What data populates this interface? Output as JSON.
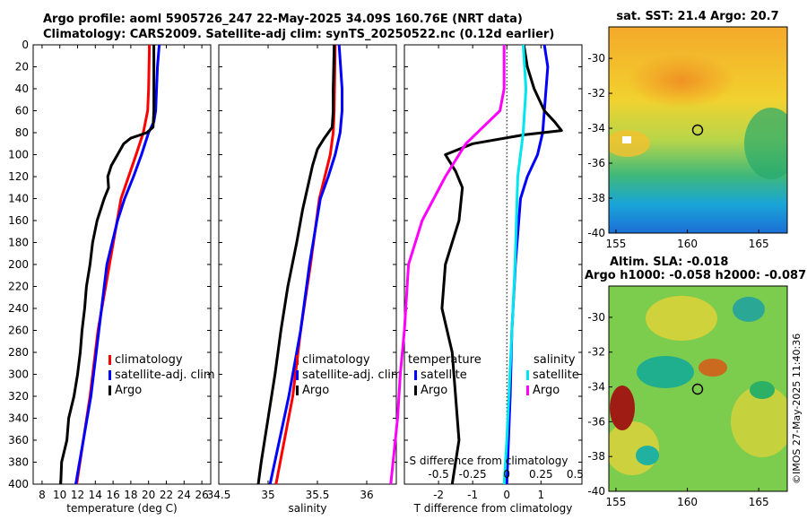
{
  "header": {
    "line1": "Argo profile: aoml 5905726_247 22-May-2025 34.09S 160.76E (NRT data)",
    "line2": "Climatology: CARS2009. Satellite-adj clim: synTS_20250522.nc (0.12d earlier)"
  },
  "colors": {
    "climatology": "#ff0000",
    "satellite": "#0000ff",
    "argo": "#000000",
    "sat_salinity": "#00e5ee",
    "argo_salinity": "#ff00ff"
  },
  "chart_data": [
    {
      "type": "line",
      "name": "temperature",
      "xlabel": "temperature (deg C)",
      "ylabel": "depth",
      "xlim": [
        7,
        27
      ],
      "ylim": [
        400,
        0
      ],
      "xticks": [
        8,
        10,
        12,
        14,
        16,
        18,
        20,
        22,
        24,
        26
      ],
      "yticks": [
        0,
        20,
        40,
        60,
        80,
        100,
        120,
        140,
        160,
        180,
        200,
        220,
        240,
        260,
        280,
        300,
        320,
        340,
        360,
        380,
        400
      ],
      "legend": [
        "climatology",
        "satellite-adj. clim",
        "Argo"
      ],
      "series": [
        {
          "name": "climatology",
          "color": "#ff0000",
          "depth": [
            0,
            40,
            60,
            80,
            100,
            140,
            200,
            260,
            320,
            400
          ],
          "values": [
            20.1,
            20.0,
            19.9,
            19.4,
            18.6,
            16.9,
            15.6,
            14.3,
            13.4,
            11.9
          ]
        },
        {
          "name": "satellite-adj. clim",
          "color": "#0000ff",
          "depth": [
            0,
            20,
            40,
            60,
            70,
            80,
            100,
            120,
            140,
            160,
            200,
            260,
            320,
            400
          ],
          "values": [
            21.2,
            21.0,
            20.9,
            20.8,
            20.6,
            20.0,
            19.2,
            18.3,
            17.3,
            16.5,
            15.3,
            14.4,
            13.5,
            11.8
          ]
        },
        {
          "name": "Argo",
          "color": "#000000",
          "depth": [
            0,
            20,
            40,
            60,
            75,
            80,
            85,
            90,
            100,
            110,
            120,
            130,
            140,
            160,
            180,
            200,
            220,
            240,
            260,
            280,
            300,
            320,
            340,
            360,
            380,
            400
          ],
          "values": [
            20.6,
            20.6,
            20.6,
            20.6,
            20.5,
            19.8,
            18.0,
            17.2,
            16.5,
            15.8,
            15.4,
            15.5,
            15.0,
            14.2,
            13.7,
            13.4,
            13.0,
            12.8,
            12.5,
            12.3,
            12.0,
            11.6,
            11.0,
            10.8,
            10.2,
            10.1
          ]
        }
      ]
    },
    {
      "type": "line",
      "name": "salinity",
      "xlabel": "salinity",
      "ylabel": "",
      "xlim": [
        34.5,
        36.3
      ],
      "ylim": [
        400,
        0
      ],
      "xticks": [
        34.5,
        35,
        35.5,
        36
      ],
      "legend": [
        "climatology",
        "satellite-adj. clim",
        "Argo"
      ],
      "series": [
        {
          "name": "climatology",
          "color": "#ff0000",
          "depth": [
            0,
            60,
            80,
            100,
            140,
            200,
            260,
            320,
            400
          ],
          "values": [
            35.68,
            35.67,
            35.66,
            35.63,
            35.52,
            35.43,
            35.33,
            35.25,
            35.08
          ]
        },
        {
          "name": "satellite-adj. clim",
          "color": "#0000ff",
          "depth": [
            0,
            40,
            60,
            80,
            100,
            120,
            140,
            200,
            260,
            320,
            400
          ],
          "values": [
            35.72,
            35.75,
            35.75,
            35.73,
            35.68,
            35.61,
            35.53,
            35.42,
            35.33,
            35.21,
            35.02
          ]
        },
        {
          "name": "Argo",
          "color": "#000000",
          "depth": [
            0,
            40,
            60,
            75,
            85,
            95,
            110,
            130,
            150,
            180,
            220,
            260,
            300,
            340,
            380,
            400
          ],
          "values": [
            35.67,
            35.66,
            35.66,
            35.65,
            35.57,
            35.5,
            35.45,
            35.4,
            35.35,
            35.29,
            35.2,
            35.13,
            35.07,
            35.0,
            34.93,
            34.9
          ]
        }
      ]
    },
    {
      "type": "line",
      "name": "difference",
      "xlabel": "T difference from climatology",
      "top_label": "S difference from climatology",
      "xlim": [
        -3,
        2.2
      ],
      "ylim": [
        400,
        0
      ],
      "xticks": [
        -2,
        -1,
        0,
        1
      ],
      "top_ticks": [
        "-0.5",
        "-0.25",
        "0",
        "0.25",
        "0.5"
      ],
      "legend_left": [
        "temperature",
        "satellite",
        "Argo"
      ],
      "legend_right": [
        "salinity",
        "satellite",
        "Argo"
      ],
      "series": [
        {
          "name": "temperature satellite",
          "color": "#0000ff",
          "depth": [
            0,
            20,
            40,
            60,
            80,
            100,
            120,
            140,
            160,
            200,
            260,
            320,
            400
          ],
          "values": [
            1.1,
            1.2,
            1.15,
            1.1,
            1.05,
            0.9,
            0.6,
            0.4,
            0.35,
            0.25,
            0.15,
            0.1,
            0.0
          ]
        },
        {
          "name": "temperature Argo",
          "color": "#000000",
          "depth": [
            0,
            20,
            40,
            60,
            70,
            78,
            82,
            90,
            100,
            115,
            130,
            160,
            200,
            240,
            280,
            320,
            360,
            400
          ],
          "values": [
            0.5,
            0.6,
            0.8,
            1.1,
            1.4,
            1.6,
            0.5,
            -1.0,
            -1.8,
            -1.5,
            -1.3,
            -1.4,
            -1.8,
            -1.9,
            -1.6,
            -1.5,
            -1.4,
            -1.6
          ]
        },
        {
          "name": "salinity satellite",
          "color": "#00e5ee",
          "depth": [
            0,
            40,
            80,
            120,
            200,
            280,
            360,
            400
          ],
          "values": [
            0.12,
            0.14,
            0.12,
            0.08,
            0.06,
            0.03,
            0.0,
            -0.02
          ]
        },
        {
          "name": "salinity Argo",
          "color": "#ff00ff",
          "depth": [
            0,
            40,
            60,
            90,
            120,
            160,
            200,
            260,
            300,
            340,
            400
          ],
          "values": [
            -0.02,
            -0.02,
            -0.05,
            -0.3,
            -0.45,
            -0.62,
            -0.72,
            -0.75,
            -0.78,
            -0.8,
            -0.85
          ]
        }
      ]
    },
    {
      "type": "heatmap",
      "name": "sst_map",
      "title": "sat. SST: 21.4 Argo: 20.7",
      "xticks": [
        "155",
        "160",
        "165"
      ],
      "yticks": [
        "-30",
        "-32",
        "-34",
        "-36",
        "-38",
        "-40"
      ],
      "xlim": [
        154.5,
        167
      ],
      "ylim": [
        -40,
        -28.2
      ],
      "argo_position": [
        160.76,
        -34.09
      ]
    },
    {
      "type": "heatmap",
      "name": "sla_map",
      "title_line1": "Altim. SLA: -0.018",
      "title_line2": "Argo h1000: -0.058 h2000: -0.087",
      "xticks": [
        "155",
        "160",
        "165"
      ],
      "yticks": [
        "-30",
        "-32",
        "-34",
        "-36",
        "-38",
        "-40"
      ],
      "xlim": [
        154.5,
        167
      ],
      "ylim": [
        -40,
        -28.2
      ],
      "argo_position": [
        160.76,
        -34.09
      ]
    }
  ],
  "footer": {
    "credit": "©IMOS 27-May-2025 11:40:36"
  }
}
